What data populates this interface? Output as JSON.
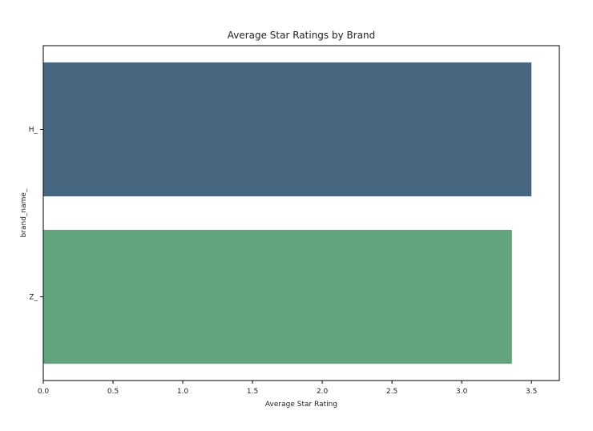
{
  "chart_data": {
    "type": "bar",
    "orientation": "horizontal",
    "title": "Average Star Ratings by Brand",
    "xlabel": "Average Star Rating",
    "ylabel": "brand_name_",
    "categories": [
      "H_",
      "Z_"
    ],
    "values": [
      3.5,
      3.36
    ],
    "bar_colors": [
      "#47667f",
      "#62a57c"
    ],
    "xlim": [
      0,
      3.7
    ],
    "x_ticks": [
      "0.0",
      "0.5",
      "1.0",
      "1.5",
      "2.0",
      "2.5",
      "3.0",
      "3.5"
    ],
    "grid": false,
    "legend": null
  }
}
